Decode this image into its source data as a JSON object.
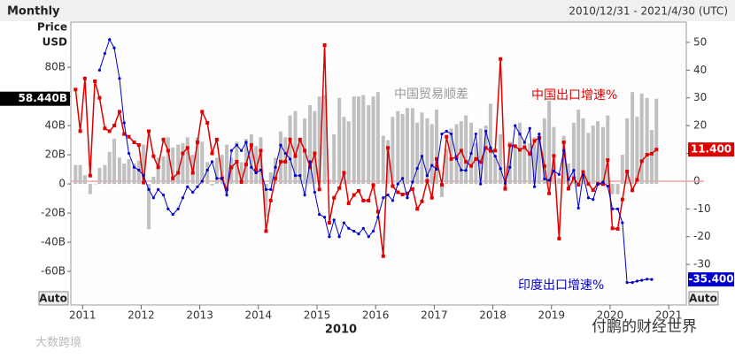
{
  "chart_data": {
    "type": "bar-line",
    "header": "Monthly",
    "date_range": "2010/12/31 - 2021/4/30 (UTC)",
    "y_label_1": "Price",
    "y_label_2": "USD",
    "x_center_label": "2010",
    "auto_button": "Auto",
    "watermark_left": "大数跨境",
    "watermark_right": "付鹏的财经世界",
    "xlim": [
      2010.8,
      2021.3
    ],
    "xticks": [
      2011,
      2012,
      2013,
      2014,
      2015,
      2016,
      2017,
      2018,
      2019,
      2020,
      2021
    ],
    "ylim": [
      -83,
      111
    ],
    "yticks": [
      {
        "value": 80,
        "label": "80B"
      },
      {
        "value": 60,
        "label": "60B"
      },
      {
        "value": 40,
        "label": "40B"
      },
      {
        "value": 20,
        "label": "20B"
      },
      {
        "value": 0,
        "label": "0"
      },
      {
        "value": -20,
        "label": "-20B"
      },
      {
        "value": -40,
        "label": "-40B"
      },
      {
        "value": -60,
        "label": "-60B"
      }
    ],
    "y2lim": [
      -44.6,
      57.3
    ],
    "y2ticks": [
      50,
      40,
      30,
      20,
      10,
      0,
      -10,
      -20,
      -30
    ],
    "x": [
      2010.88,
      2010.96,
      2011.04,
      2011.13,
      2011.21,
      2011.29,
      2011.38,
      2011.46,
      2011.54,
      2011.63,
      2011.71,
      2011.79,
      2011.88,
      2011.96,
      2012.04,
      2012.13,
      2012.21,
      2012.29,
      2012.38,
      2012.46,
      2012.54,
      2012.63,
      2012.71,
      2012.79,
      2012.88,
      2012.96,
      2013.04,
      2013.13,
      2013.21,
      2013.29,
      2013.38,
      2013.46,
      2013.54,
      2013.63,
      2013.71,
      2013.79,
      2013.88,
      2013.96,
      2014.04,
      2014.13,
      2014.21,
      2014.29,
      2014.38,
      2014.46,
      2014.54,
      2014.63,
      2014.71,
      2014.79,
      2014.88,
      2014.96,
      2015.04,
      2015.13,
      2015.21,
      2015.29,
      2015.38,
      2015.46,
      2015.54,
      2015.63,
      2015.71,
      2015.79,
      2015.88,
      2015.96,
      2016.04,
      2016.13,
      2016.21,
      2016.29,
      2016.38,
      2016.46,
      2016.54,
      2016.63,
      2016.71,
      2016.79,
      2016.88,
      2016.96,
      2017.04,
      2017.13,
      2017.21,
      2017.29,
      2017.38,
      2017.46,
      2017.54,
      2017.63,
      2017.71,
      2017.79,
      2017.88,
      2017.96,
      2018.04,
      2018.13,
      2018.21,
      2018.29,
      2018.38,
      2018.46,
      2018.54,
      2018.63,
      2018.71,
      2018.79,
      2018.88,
      2018.96,
      2019.04,
      2019.13,
      2019.21,
      2019.29,
      2019.38,
      2019.46,
      2019.54,
      2019.63,
      2019.71,
      2019.79,
      2019.88,
      2019.96,
      2020.04,
      2020.13,
      2020.21,
      2020.29,
      2020.38,
      2020.46,
      2020.54,
      2020.63,
      2020.71,
      2020.79
    ],
    "series": [
      {
        "name": "中国贸易顺差",
        "kind": "bar",
        "color": "#c0c0c0",
        "last_value_label": "58.440B",
        "values": [
          13,
          13,
          6,
          -7,
          0.1,
          11,
          13,
          22,
          31,
          18,
          14,
          17,
          14,
          16,
          27,
          -31,
          5,
          18,
          19,
          32,
          25,
          27,
          28,
          32,
          20,
          32,
          29,
          15,
          -1,
          18,
          20,
          27,
          18,
          29,
          15,
          31,
          34,
          26,
          32,
          -23,
          8,
          18,
          36,
          32,
          47,
          50,
          31,
          45,
          54,
          50,
          60,
          61,
          3,
          34,
          59,
          46,
          43,
          60,
          60,
          61,
          54,
          60,
          63,
          33,
          30,
          46,
          50,
          48,
          52,
          52,
          42,
          49,
          45,
          41,
          51,
          -9,
          24,
          38,
          41,
          43,
          47,
          42,
          28,
          38,
          40,
          55,
          20,
          34,
          -5,
          29,
          25,
          42,
          28,
          28,
          32,
          34,
          45,
          57,
          39,
          4,
          33,
          14,
          42,
          51,
          45,
          35,
          40,
          43,
          39,
          47,
          -7,
          -7,
          20,
          45,
          63,
          46,
          62,
          59,
          37,
          58.44
        ]
      },
      {
        "name": "中国出口增速%",
        "kind": "line",
        "axis": "y2",
        "color": "#e00000",
        "last_value_label": "11.400",
        "values": [
          33,
          18,
          37,
          2,
          36,
          30,
          19,
          18,
          20,
          25,
          17,
          16,
          14,
          13,
          -0.5,
          18,
          9,
          5,
          15,
          11,
          1,
          3,
          10,
          12,
          3,
          14,
          25,
          21,
          10,
          15,
          1,
          -3,
          5,
          7,
          -0.3,
          6,
          13,
          4,
          11,
          -18,
          -7,
          1,
          7,
          7,
          15,
          9,
          15,
          11,
          5,
          10,
          -3,
          49,
          -15,
          -6,
          -2.5,
          3,
          -8,
          -5,
          -3.5,
          -7,
          -7,
          -1.4,
          -11,
          -27,
          12,
          -1.8,
          -4,
          -4.8,
          -4.4,
          -2.8,
          -10,
          -7.3,
          0.1,
          -6,
          8,
          -1.3,
          16,
          8,
          8.7,
          11,
          7,
          5.5,
          8,
          6.9,
          12,
          10.9,
          11,
          44,
          -2.7,
          12.9,
          12.6,
          11.3,
          12.2,
          9.8,
          14.5,
          15.6,
          5.4,
          -4.4,
          9.1,
          -20.7,
          14,
          -2.7,
          1.1,
          -1.3,
          3.3,
          -1,
          -3.2,
          -0.9,
          -1.1,
          7.6,
          -17,
          -17.2,
          -6.6,
          3.5,
          -3.3,
          0.5,
          7.2,
          9.5,
          9.9,
          11.4
        ]
      },
      {
        "name": "印度出口增速%",
        "kind": "line",
        "axis": "y2",
        "color": "#0000cc",
        "last_value_label": "-35.400",
        "values": [
          null,
          null,
          null,
          null,
          null,
          40,
          46,
          51,
          48,
          37,
          21,
          10,
          5,
          4,
          2,
          -3,
          -6,
          -3,
          -5,
          -10,
          -12,
          -10,
          -6,
          -2,
          -4,
          -2,
          0,
          4,
          7,
          1,
          1,
          -5,
          11,
          13,
          11,
          14,
          5,
          3,
          4,
          -3,
          -3,
          5,
          13,
          10,
          8,
          2,
          2,
          -5,
          7,
          -4,
          -12,
          -13,
          -20,
          -14,
          -20,
          -15,
          -17,
          -18,
          -19,
          -17,
          -20,
          -18,
          -13,
          -6,
          -5,
          -7,
          -1,
          1,
          -6,
          -0.3,
          4.6,
          9,
          2,
          5.7,
          4.3,
          17,
          18,
          17,
          8,
          4,
          3.9,
          10,
          17,
          -1,
          18,
          12,
          9,
          4.5,
          -0.7,
          5,
          20,
          17,
          14,
          19,
          -2,
          17,
          0.8,
          0.3,
          3.7,
          2.4,
          11,
          0.6,
          3.9,
          -9.7,
          2.2,
          -6,
          -6.6,
          -1.1,
          -0.3,
          -1.8,
          -10,
          -10,
          -15,
          -36.5,
          -36.5,
          -36,
          -35.7,
          -35.3,
          -35.4,
          null
        ]
      }
    ]
  }
}
